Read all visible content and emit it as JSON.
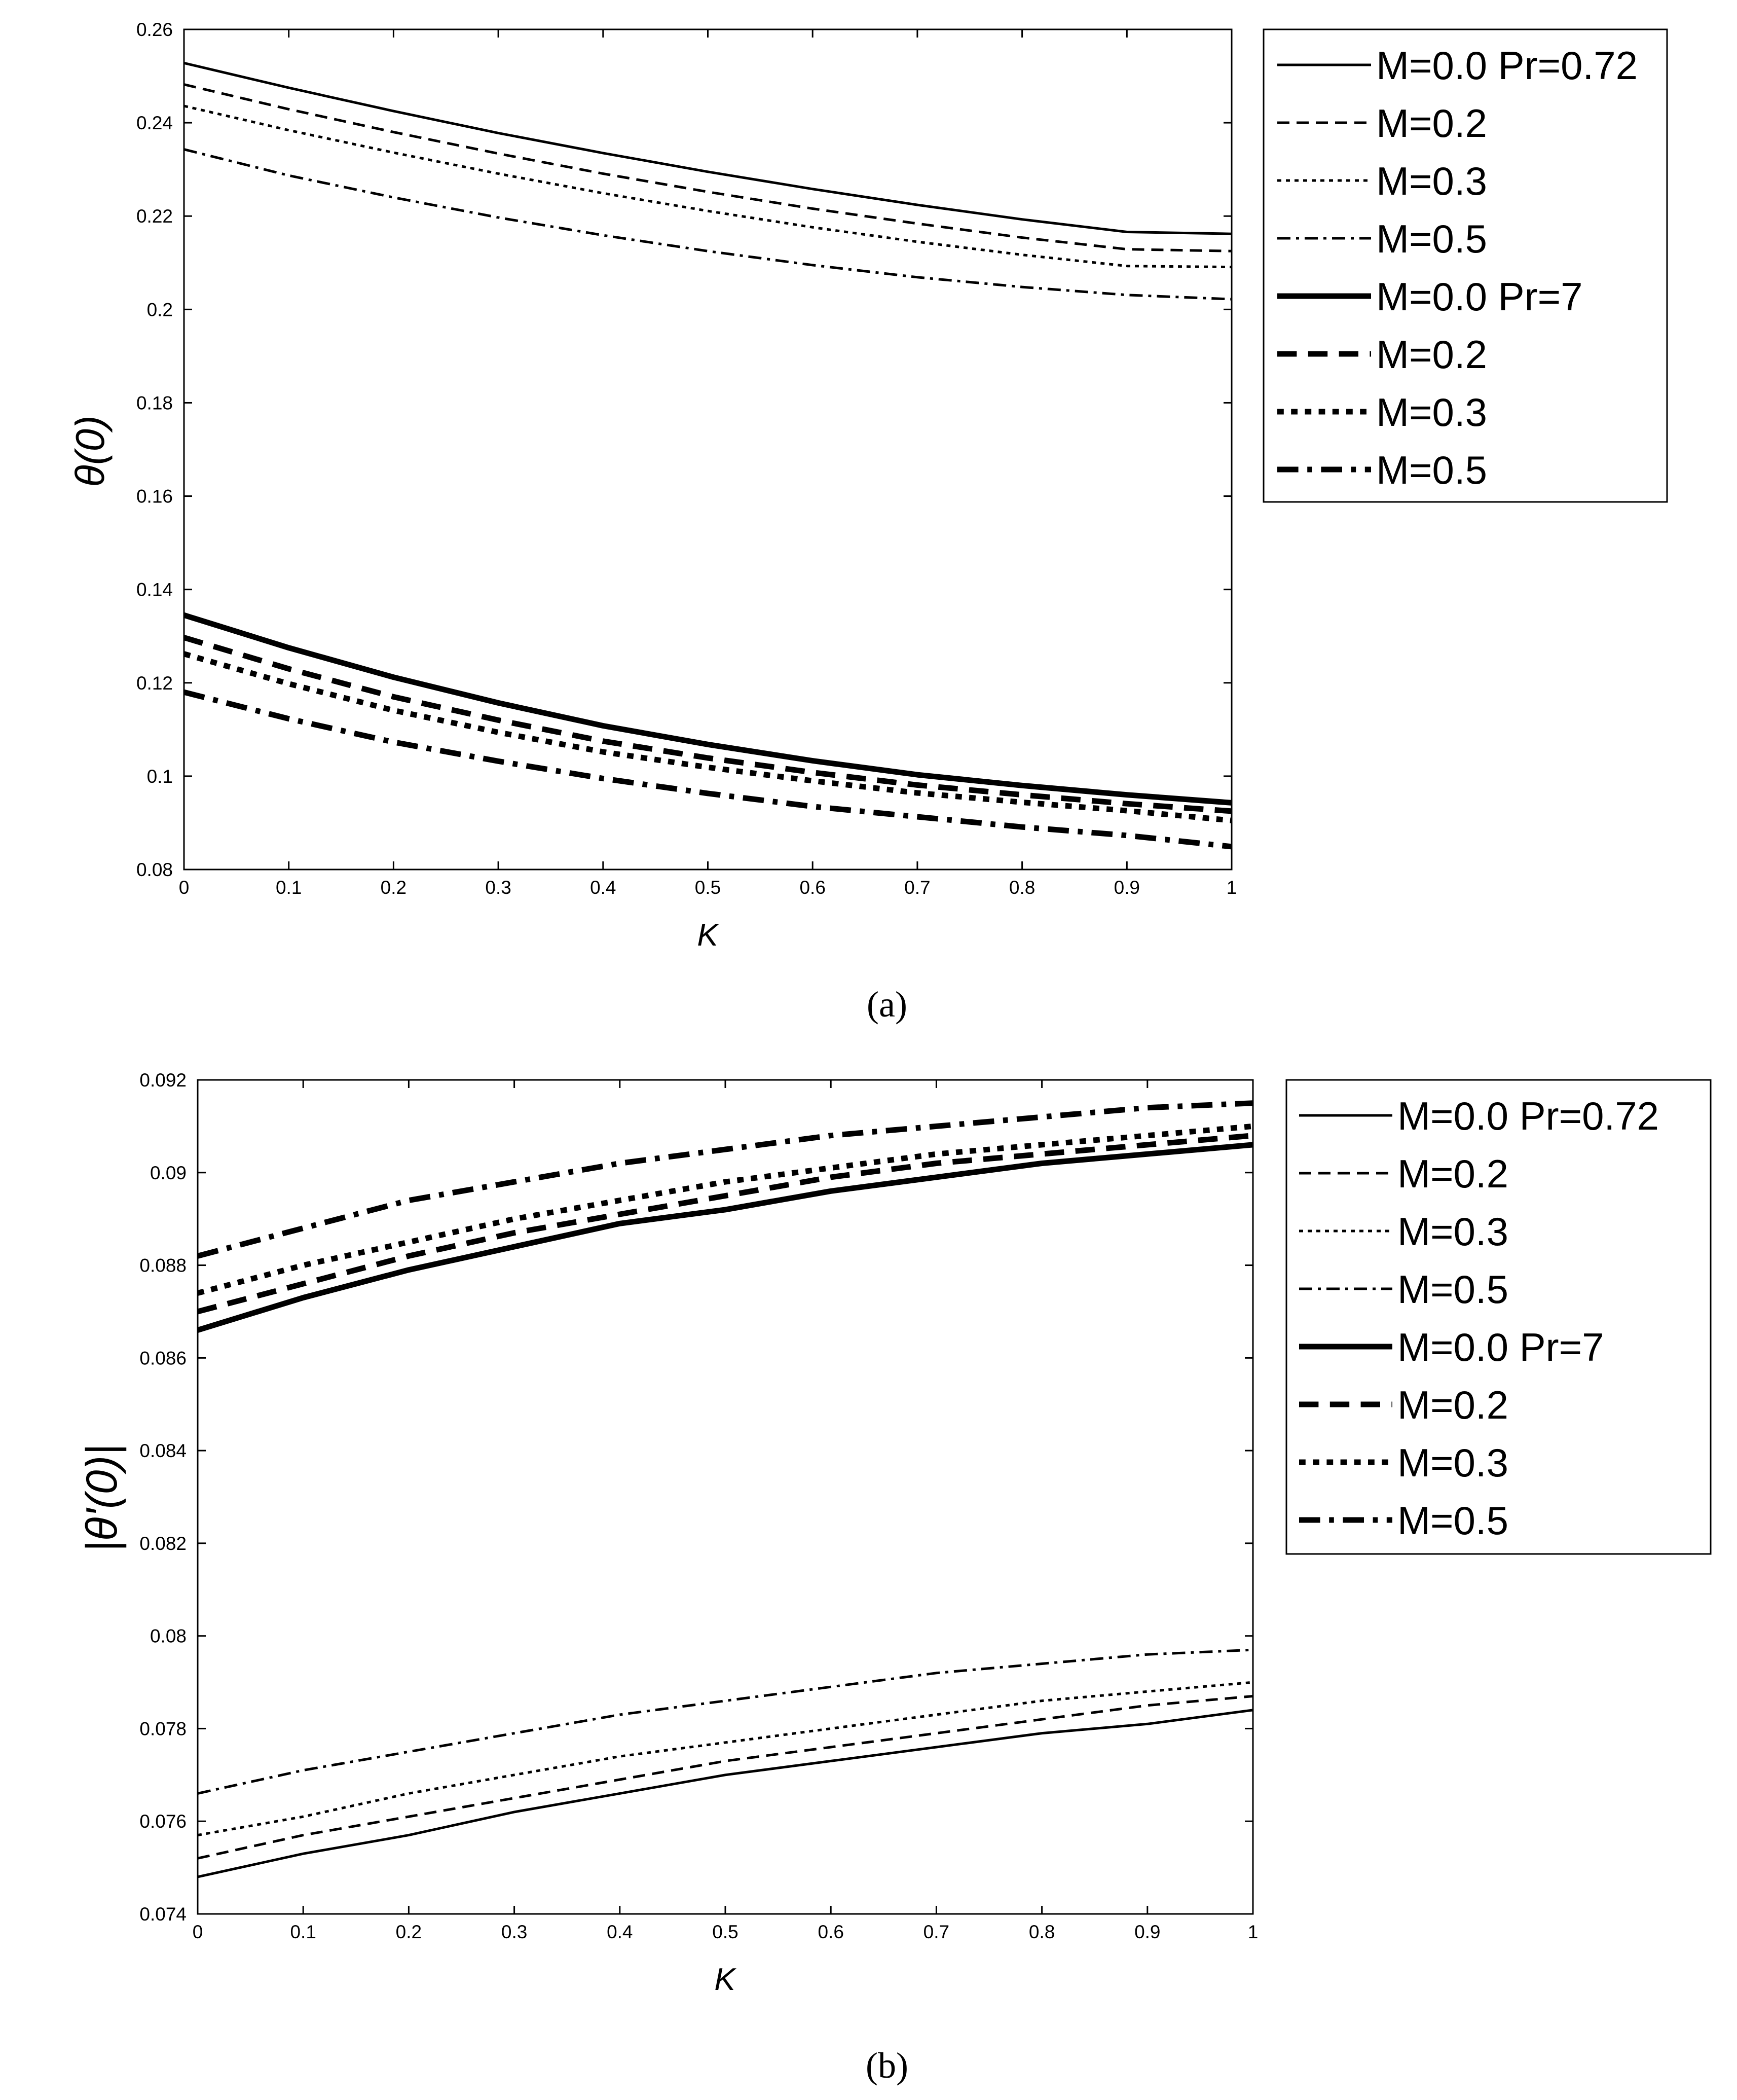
{
  "figure": {
    "panel_labels": [
      "(a)",
      "(b)"
    ]
  },
  "chart_data": [
    {
      "type": "line",
      "panel": "(a)",
      "title": "",
      "xlabel": "K",
      "ylabel": "θ(0)",
      "xlim": [
        0,
        1
      ],
      "ylim": [
        0.08,
        0.26
      ],
      "xticks": [
        "0",
        "0.1",
        "0.2",
        "0.3",
        "0.4",
        "0.5",
        "0.6",
        "0.7",
        "0.8",
        "0.9",
        "1"
      ],
      "yticks": [
        "0.08",
        "0.1",
        "0.12",
        "0.14",
        "0.16",
        "0.18",
        "0.2",
        "0.22",
        "0.24",
        "0.26"
      ],
      "legend_placement": "outside-right-top",
      "x": [
        0,
        0.1,
        0.2,
        0.3,
        0.4,
        0.5,
        0.6,
        0.7,
        0.8,
        0.9,
        1.0
      ],
      "series": [
        {
          "name": "M=0.0 Pr=0.72",
          "style": "solid",
          "weight": "thin",
          "values": [
            0.2528,
            0.2475,
            0.2425,
            0.2378,
            0.2335,
            0.2295,
            0.2258,
            0.2224,
            0.2193,
            0.2166,
            0.2162
          ]
        },
        {
          "name": "M=0.2",
          "style": "dashed",
          "weight": "thin",
          "values": [
            0.2482,
            0.2429,
            0.238,
            0.2334,
            0.2291,
            0.2252,
            0.2216,
            0.2184,
            0.2154,
            0.2129,
            0.2125
          ]
        },
        {
          "name": "M=0.3",
          "style": "dotted",
          "weight": "thin",
          "values": [
            0.2436,
            0.2384,
            0.2336,
            0.2291,
            0.2249,
            0.2211,
            0.2176,
            0.2145,
            0.2117,
            0.2093,
            0.2091
          ]
        },
        {
          "name": "M=0.5",
          "style": "dashdot",
          "weight": "thin",
          "values": [
            0.2343,
            0.2287,
            0.224,
            0.2197,
            0.2159,
            0.2125,
            0.2095,
            0.2069,
            0.2048,
            0.2031,
            0.2022
          ]
        },
        {
          "name": "M=0.0 Pr=7",
          "style": "solid",
          "weight": "thick",
          "values": [
            0.1345,
            0.1275,
            0.1212,
            0.1157,
            0.1108,
            0.1068,
            0.1033,
            0.1003,
            0.098,
            0.096,
            0.0943
          ]
        },
        {
          "name": "M=0.2",
          "style": "dashed",
          "weight": "thick",
          "values": [
            0.1297,
            0.123,
            0.117,
            0.112,
            0.1075,
            0.1039,
            0.1008,
            0.0981,
            0.096,
            0.0941,
            0.0925
          ]
        },
        {
          "name": "M=0.3",
          "style": "dotted",
          "weight": "thick",
          "values": [
            0.1262,
            0.1198,
            0.1141,
            0.1094,
            0.1052,
            0.1019,
            0.099,
            0.0964,
            0.0944,
            0.0926,
            0.0905
          ]
        },
        {
          "name": "M=0.5",
          "style": "dashdot",
          "weight": "thick",
          "values": [
            0.118,
            0.1123,
            0.1073,
            0.1032,
            0.0995,
            0.0963,
            0.0935,
            0.0913,
            0.0891,
            0.0873,
            0.0849
          ]
        }
      ]
    },
    {
      "type": "line",
      "panel": "(b)",
      "title": "",
      "xlabel": "K",
      "ylabel": "|θ'(0)|",
      "xlim": [
        0,
        1
      ],
      "ylim": [
        0.074,
        0.092
      ],
      "xticks": [
        "0",
        "0.1",
        "0.2",
        "0.3",
        "0.4",
        "0.5",
        "0.6",
        "0.7",
        "0.8",
        "0.9",
        "1"
      ],
      "yticks": [
        "0.074",
        "0.076",
        "0.078",
        "0.08",
        "0.082",
        "0.084",
        "0.086",
        "0.088",
        "0.09",
        "0.092"
      ],
      "legend_placement": "outside-right-top",
      "x": [
        0,
        0.1,
        0.2,
        0.3,
        0.4,
        0.5,
        0.6,
        0.7,
        0.8,
        0.9,
        1.0
      ],
      "series": [
        {
          "name": "M=0.0 Pr=0.72",
          "style": "solid",
          "weight": "thin",
          "values": [
            0.0748,
            0.0753,
            0.0757,
            0.0762,
            0.0766,
            0.077,
            0.0773,
            0.0776,
            0.0779,
            0.0781,
            0.0784
          ]
        },
        {
          "name": "M=0.2",
          "style": "dashed",
          "weight": "thin",
          "values": [
            0.0752,
            0.0757,
            0.0761,
            0.0765,
            0.0769,
            0.0773,
            0.0776,
            0.0779,
            0.0782,
            0.0785,
            0.0787
          ]
        },
        {
          "name": "M=0.3",
          "style": "dotted",
          "weight": "thin",
          "values": [
            0.0757,
            0.0761,
            0.0766,
            0.077,
            0.0774,
            0.0777,
            0.078,
            0.0783,
            0.0786,
            0.0788,
            0.079
          ]
        },
        {
          "name": "M=0.5",
          "style": "dashdot",
          "weight": "thin",
          "values": [
            0.0766,
            0.0771,
            0.0775,
            0.0779,
            0.0783,
            0.0786,
            0.0789,
            0.0792,
            0.0794,
            0.0796,
            0.0797
          ]
        },
        {
          "name": "M=0.0 Pr=7",
          "style": "solid",
          "weight": "thick",
          "values": [
            0.0866,
            0.0873,
            0.0879,
            0.0884,
            0.0889,
            0.0892,
            0.0896,
            0.0899,
            0.0902,
            0.0904,
            0.0906
          ]
        },
        {
          "name": "M=0.2",
          "style": "dashed",
          "weight": "thick",
          "values": [
            0.087,
            0.0876,
            0.0882,
            0.0887,
            0.0891,
            0.0895,
            0.0899,
            0.0902,
            0.0904,
            0.0906,
            0.0908
          ]
        },
        {
          "name": "M=0.3",
          "style": "dotted",
          "weight": "thick",
          "values": [
            0.0874,
            0.088,
            0.0885,
            0.089,
            0.0894,
            0.0898,
            0.0901,
            0.0904,
            0.0906,
            0.0908,
            0.091
          ]
        },
        {
          "name": "M=0.5",
          "style": "dashdot",
          "weight": "thick",
          "values": [
            0.0882,
            0.0888,
            0.0894,
            0.0898,
            0.0902,
            0.0905,
            0.0908,
            0.091,
            0.0912,
            0.0914,
            0.0915
          ]
        }
      ]
    }
  ]
}
